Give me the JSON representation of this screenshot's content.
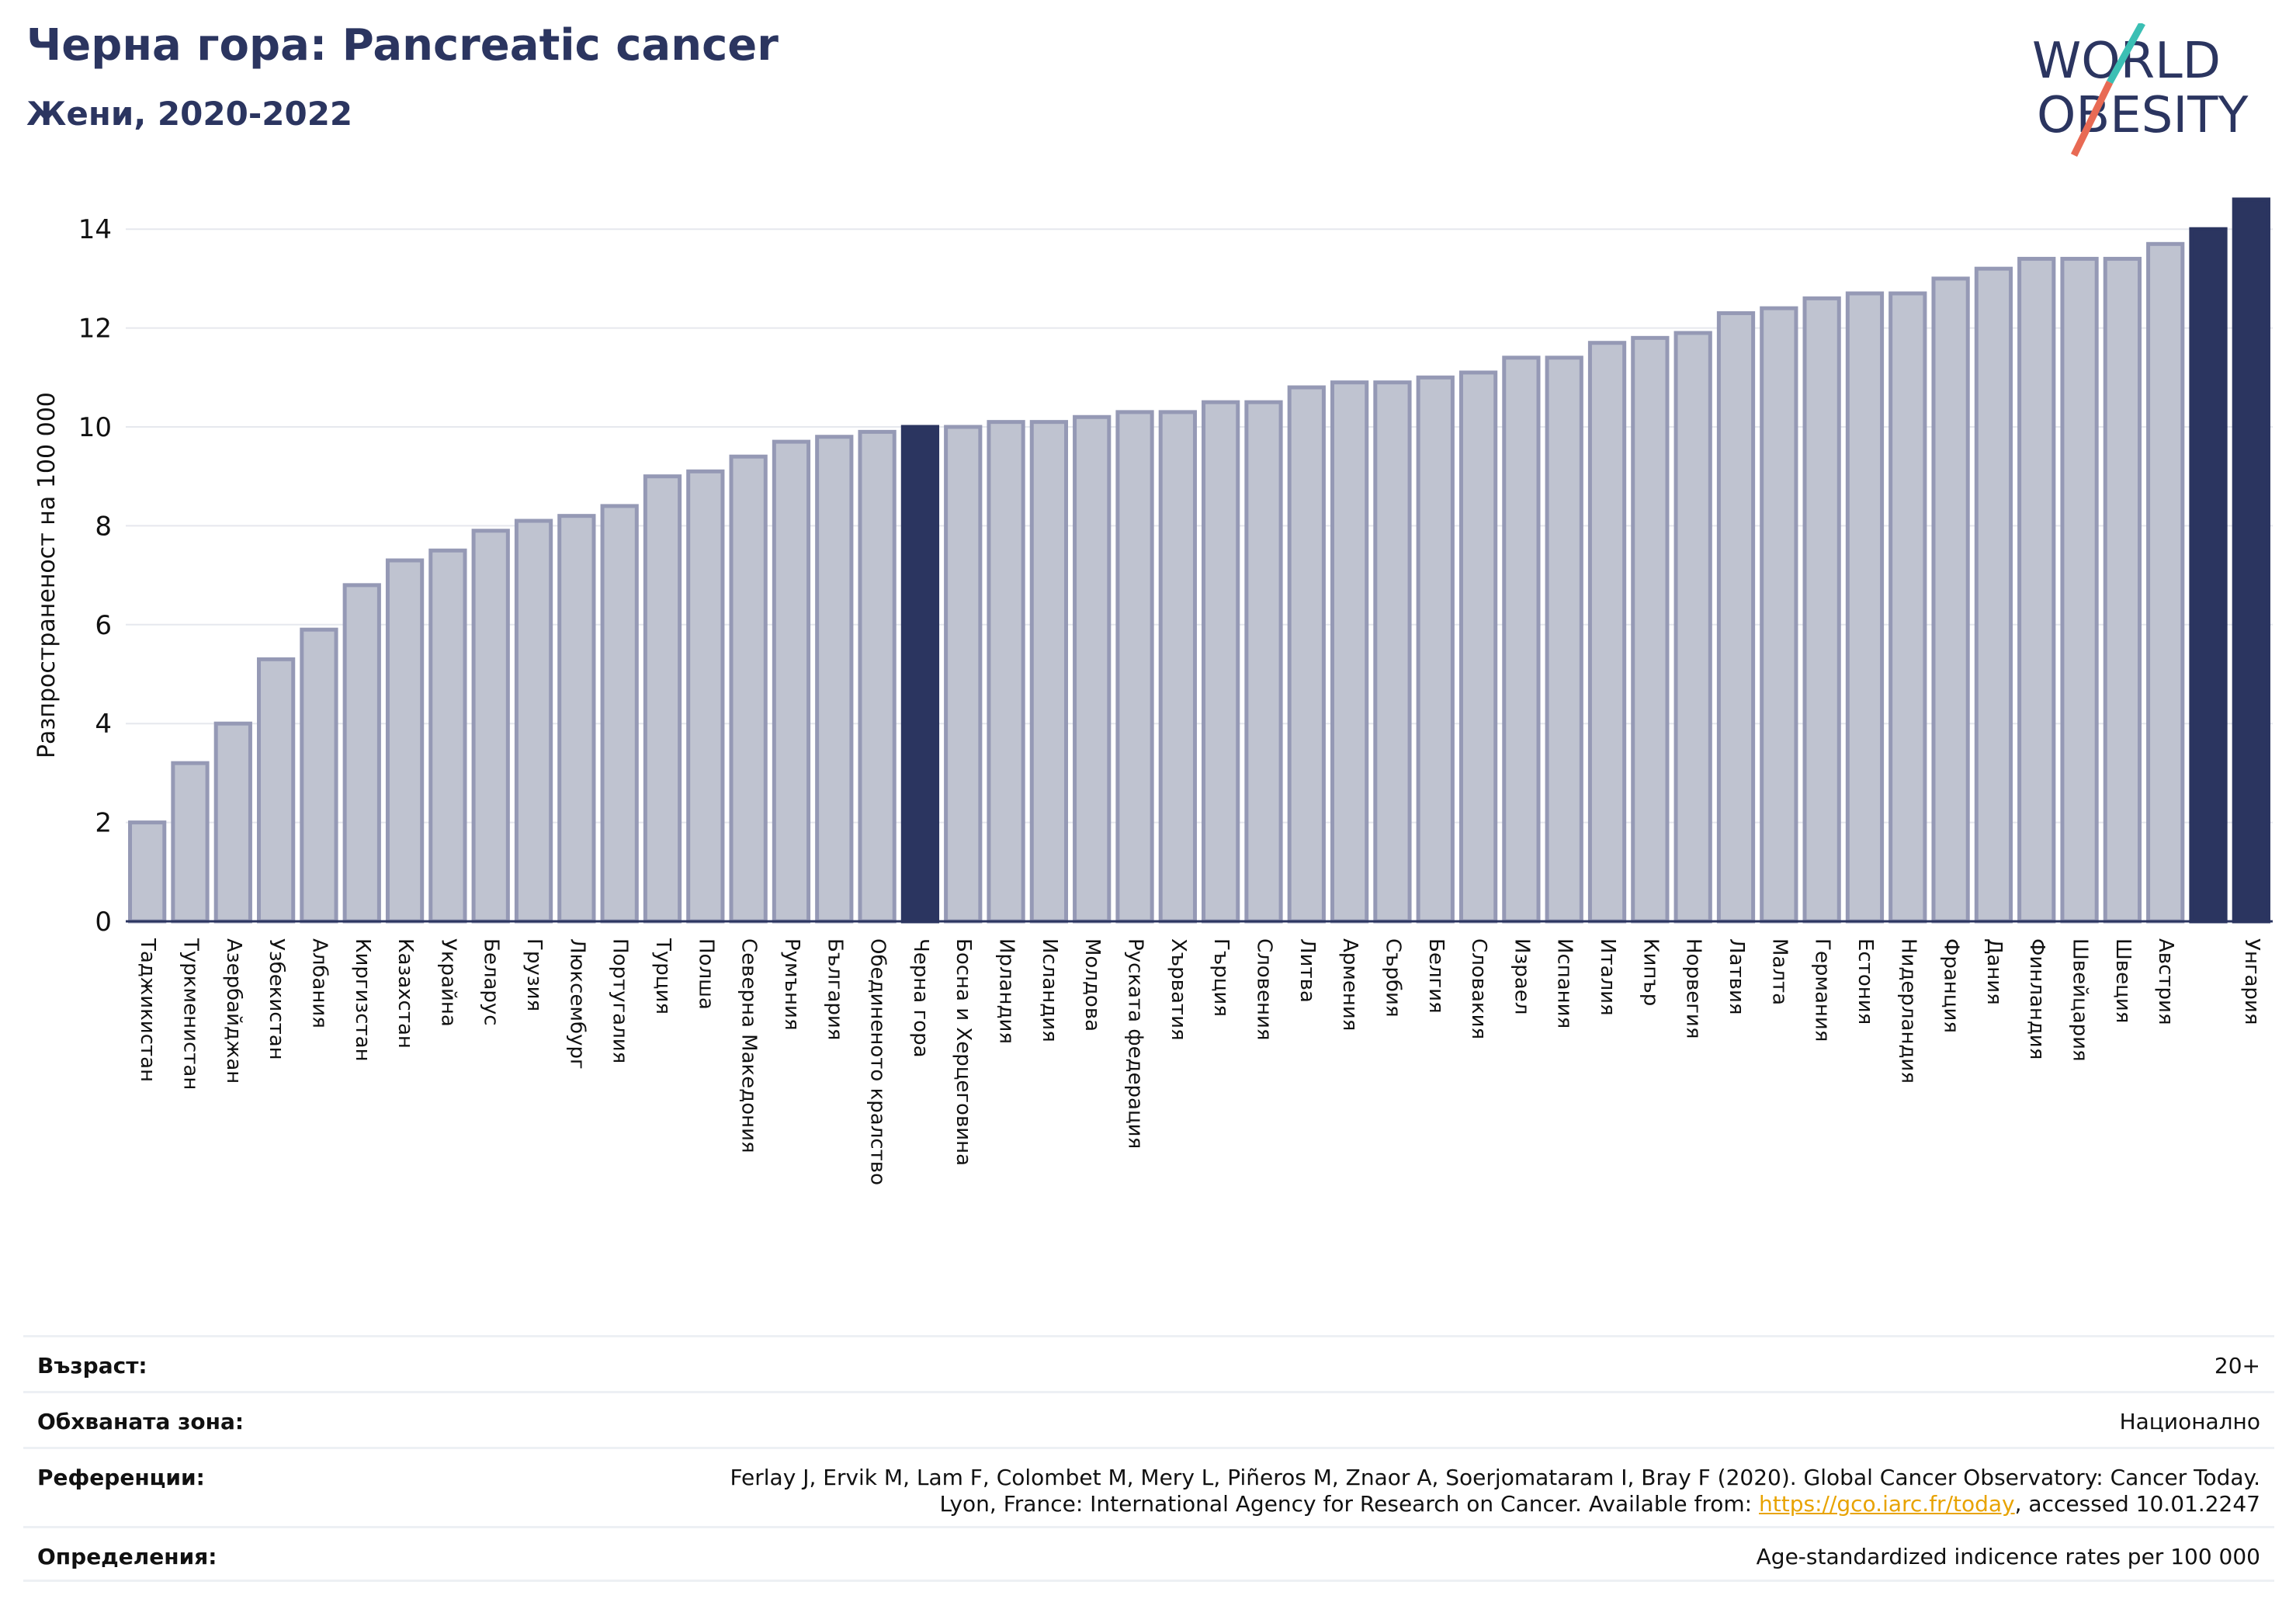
{
  "header": {
    "title": "Черна гора: Pancreatic cancer",
    "subtitle": "Жени, 2020-2022"
  },
  "logo": {
    "line1": "WORLD",
    "line2": "OBESITY",
    "text_color": "#2b3560",
    "slash_teal": "#3bbfb4",
    "slash_coral": "#e86a54"
  },
  "colors": {
    "bar": "#bfc3d0",
    "bar_edge": "#9599b5",
    "highlight": "#2b3560",
    "grid": "#e6e8ee",
    "axis": "#2b3560"
  },
  "chart_data": {
    "type": "bar",
    "ylabel": "Разпространеност  на 100 000",
    "ylim": [
      0,
      14.6
    ],
    "yticks": [
      0,
      2,
      4,
      6,
      8,
      10,
      12,
      14
    ],
    "grid": true,
    "highlight": [
      "Черна гора",
      "Унгария"
    ],
    "categories": [
      "Таджикистан",
      "Туркменистан",
      "Азербайджан",
      "Узбекистан",
      "Албания",
      "Киргизстан",
      "Казахстан",
      "Украйна",
      "Беларус",
      "Грузия",
      "Люксембург",
      "Португалия",
      "Турция",
      "Полша",
      "Северна Македония",
      "Румъния",
      "България",
      "Обединеното кралство",
      "Черна гора",
      "Босна и Херцеговина",
      "Ирландия",
      "Исландия",
      "Молдова",
      "Руската федерация",
      "Хърватия",
      "Гърция",
      "Словения",
      "Литва",
      "Армения",
      "Сърбия",
      "Белгия",
      "Словакия",
      "Израел",
      "Испания",
      "Италия",
      "Кипър",
      "Норвегия",
      "Латвия",
      "Малта",
      "Германия",
      "Естония",
      "Нидерландия",
      "Франция",
      "Дания",
      "Финландия",
      "Швейцария",
      "Швеция",
      "Австрия",
      "",
      "Унгария"
    ],
    "values": [
      2.0,
      3.2,
      4.0,
      5.3,
      5.9,
      6.8,
      7.3,
      7.5,
      7.9,
      8.1,
      8.2,
      8.4,
      9.0,
      9.1,
      9.4,
      9.7,
      9.8,
      9.9,
      10.0,
      10.0,
      10.1,
      10.1,
      10.2,
      10.3,
      10.3,
      10.5,
      10.5,
      10.8,
      10.9,
      10.9,
      11.0,
      11.1,
      11.4,
      11.4,
      11.7,
      11.8,
      11.9,
      12.3,
      12.4,
      12.6,
      12.7,
      12.7,
      13.0,
      13.2,
      13.4,
      13.4,
      13.4,
      13.7,
      14.0,
      14.6
    ]
  },
  "info": {
    "age_label": "Възраст:",
    "age_value": "20+",
    "coverage_label": "Обхваната зона:",
    "coverage_value": "Национално",
    "refs_label": "Референции:",
    "refs_line1": "Ferlay J, Ervik M, Lam F, Colombet M, Mery L, Piñeros M, Znaor A, Soerjomataram I, Bray F (2020). Global Cancer Observatory: Cancer Today.",
    "refs_line2_pre": "Lyon, France: International Agency for Research on Cancer. Available from: ",
    "refs_link": "https://gco.iarc.fr/today",
    "refs_line2_post": ", accessed 10.01.2247",
    "defs_label": "Определения:",
    "defs_value": "Age-standardized indicence rates per 100 000"
  }
}
